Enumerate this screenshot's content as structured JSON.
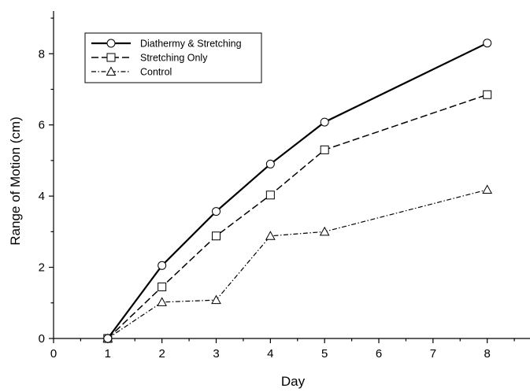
{
  "chart_data": {
    "type": "line",
    "title": "",
    "xlabel": "Day",
    "ylabel": "Range of Motion (cm)",
    "xlim": [
      0,
      8.6
    ],
    "ylim": [
      0,
      9.2
    ],
    "xticks": [
      0,
      1,
      2,
      3,
      4,
      5,
      6,
      7,
      8
    ],
    "yticks": [
      0,
      2,
      4,
      6,
      8
    ],
    "x": [
      1,
      2,
      3,
      4,
      5,
      8
    ],
    "grid": false,
    "legend_position": "top-left",
    "series": [
      {
        "name": "Diathermy & Stretching",
        "marker": "circle",
        "line_style": "solid-thick",
        "color": "#000000",
        "values": [
          0.0,
          2.05,
          3.57,
          4.9,
          6.08,
          8.3
        ]
      },
      {
        "name": "Stretching Only",
        "marker": "square",
        "line_style": "dashed",
        "color": "#000000",
        "values": [
          0.0,
          1.45,
          2.88,
          4.03,
          5.3,
          6.85
        ]
      },
      {
        "name": "Control",
        "marker": "triangle",
        "line_style": "dash-dot",
        "color": "#000000",
        "values": [
          0.0,
          1.02,
          1.08,
          2.88,
          3.0,
          4.18
        ]
      }
    ]
  }
}
